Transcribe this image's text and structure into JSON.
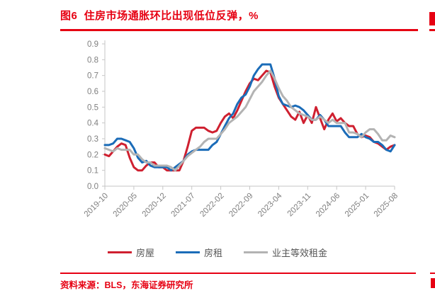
{
  "page": {
    "title": "图6  住房市场通胀环比出现低位反弹，%",
    "source_note": "资料来源：BLS，东海证券研究所",
    "accent_color": "#e60012",
    "axis_color": "#c6c6c6",
    "tick_text_color": "#7f7f7f",
    "legend_text_color": "#555555"
  },
  "chart_data": {
    "type": "line",
    "title": "住房市场通胀环比出现低位反弹",
    "unit": "%",
    "grid": false,
    "legend_position": "bottom-center",
    "ylim": [
      0.0,
      0.9
    ],
    "y_ticks": [
      "0.0",
      "0.1",
      "0.2",
      "0.3",
      "0.4",
      "0.5",
      "0.6",
      "0.7",
      "0.8",
      "0.9"
    ],
    "x_tick_every": 7,
    "x_tick_labels": [
      "2019-10",
      "2020-05",
      "2020-12",
      "2021-07",
      "2022-02",
      "2022-09",
      "2023-04",
      "2023-11",
      "2024-06",
      "2025-01",
      "2025-08"
    ],
    "x_months": [
      "2019-10",
      "2019-11",
      "2019-12",
      "2020-01",
      "2020-02",
      "2020-03",
      "2020-04",
      "2020-05",
      "2020-06",
      "2020-07",
      "2020-08",
      "2020-09",
      "2020-10",
      "2020-11",
      "2020-12",
      "2021-01",
      "2021-02",
      "2021-03",
      "2021-04",
      "2021-05",
      "2021-06",
      "2021-07",
      "2021-08",
      "2021-09",
      "2021-10",
      "2021-11",
      "2021-12",
      "2022-01",
      "2022-02",
      "2022-03",
      "2022-04",
      "2022-05",
      "2022-06",
      "2022-07",
      "2022-08",
      "2022-09",
      "2022-10",
      "2022-11",
      "2022-12",
      "2023-01",
      "2023-02",
      "2023-03",
      "2023-04",
      "2023-05",
      "2023-06",
      "2023-07",
      "2023-08",
      "2023-09",
      "2023-10",
      "2023-11",
      "2023-12",
      "2024-01",
      "2024-02",
      "2024-03",
      "2024-04",
      "2024-05",
      "2024-06",
      "2024-07",
      "2024-08",
      "2024-09",
      "2024-10",
      "2024-11",
      "2024-12",
      "2025-01",
      "2025-02",
      "2025-03",
      "2025-04",
      "2025-05",
      "2025-06",
      "2025-07",
      "2025-08"
    ],
    "series": [
      {
        "name": "房屋",
        "color": "#cf2030",
        "values": [
          0.2,
          0.19,
          0.22,
          0.25,
          0.27,
          0.26,
          0.18,
          0.12,
          0.1,
          0.1,
          0.13,
          0.15,
          0.15,
          0.12,
          0.12,
          0.1,
          0.1,
          0.1,
          0.1,
          0.16,
          0.25,
          0.35,
          0.37,
          0.37,
          0.37,
          0.35,
          0.34,
          0.35,
          0.4,
          0.44,
          0.46,
          0.43,
          0.48,
          0.54,
          0.6,
          0.65,
          0.68,
          0.67,
          0.7,
          0.73,
          0.72,
          0.63,
          0.56,
          0.52,
          0.48,
          0.44,
          0.42,
          0.47,
          0.4,
          0.45,
          0.4,
          0.5,
          0.43,
          0.36,
          0.42,
          0.46,
          0.41,
          0.43,
          0.4,
          0.38,
          0.38,
          0.33,
          0.31,
          0.32,
          0.31,
          0.28,
          0.27,
          0.25,
          0.23,
          0.25,
          0.26
        ]
      },
      {
        "name": "房租",
        "color": "#1b6cb8",
        "values": [
          0.26,
          0.26,
          0.27,
          0.3,
          0.3,
          0.29,
          0.28,
          0.24,
          0.18,
          0.15,
          0.16,
          0.13,
          0.12,
          0.12,
          0.12,
          0.12,
          0.1,
          0.12,
          0.14,
          0.16,
          0.2,
          0.22,
          0.23,
          0.23,
          0.23,
          0.23,
          0.26,
          0.28,
          0.33,
          0.38,
          0.43,
          0.46,
          0.52,
          0.56,
          0.58,
          0.63,
          0.7,
          0.74,
          0.77,
          0.77,
          0.77,
          0.68,
          0.57,
          0.52,
          0.51,
          0.5,
          0.51,
          0.5,
          0.48,
          0.45,
          0.42,
          0.42,
          0.45,
          0.42,
          0.38,
          0.38,
          0.38,
          0.38,
          0.34,
          0.31,
          0.31,
          0.31,
          0.33,
          0.31,
          0.3,
          0.28,
          0.28,
          0.26,
          0.23,
          0.22,
          0.26
        ]
      },
      {
        "name": "业主等效租金",
        "color": "#b3b3b3",
        "values": [
          0.24,
          0.23,
          0.22,
          0.24,
          0.23,
          0.23,
          0.23,
          0.2,
          0.2,
          0.17,
          0.15,
          0.15,
          0.13,
          0.13,
          0.13,
          0.13,
          0.12,
          0.1,
          0.13,
          0.16,
          0.19,
          0.21,
          0.23,
          0.25,
          0.28,
          0.3,
          0.3,
          0.3,
          0.33,
          0.36,
          0.4,
          0.42,
          0.44,
          0.47,
          0.5,
          0.55,
          0.6,
          0.63,
          0.66,
          0.7,
          0.73,
          0.68,
          0.62,
          0.57,
          0.54,
          0.5,
          0.48,
          0.46,
          0.45,
          0.44,
          0.42,
          0.42,
          0.44,
          0.42,
          0.4,
          0.42,
          0.4,
          0.4,
          0.4,
          0.34,
          0.34,
          0.33,
          0.31,
          0.34,
          0.36,
          0.36,
          0.33,
          0.29,
          0.29,
          0.32,
          0.31
        ]
      }
    ]
  }
}
